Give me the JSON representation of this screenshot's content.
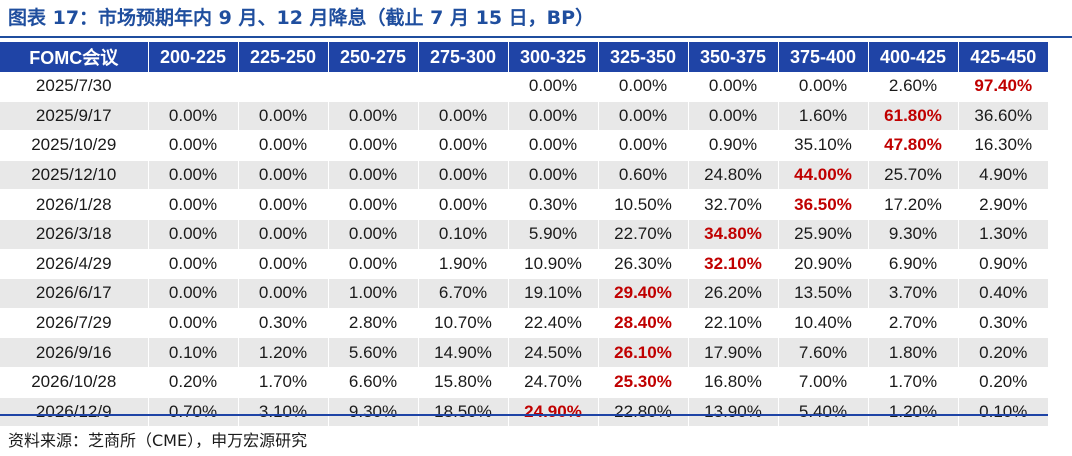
{
  "title": "图表 17：市场预期年内 9 月、12 月降息（截止 7 月 15 日，BP）",
  "source": "资料来源：芝商所（CME），申万宏源研究",
  "colors": {
    "header_bg": "#1f44a6",
    "title": "#1f4e9e",
    "highlight": "#c00000",
    "row_alt": "#e8e8e8"
  },
  "table": {
    "headers": [
      "FOMC会议",
      "200-225",
      "225-250",
      "250-275",
      "275-300",
      "300-325",
      "325-350",
      "350-375",
      "375-400",
      "400-425",
      "425-450"
    ],
    "rows": [
      {
        "cells": [
          "2025/7/30",
          "",
          "",
          "",
          "",
          "0.00%",
          "0.00%",
          "0.00%",
          "0.00%",
          "2.60%",
          "97.40%"
        ],
        "highlight": 10
      },
      {
        "cells": [
          "2025/9/17",
          "0.00%",
          "0.00%",
          "0.00%",
          "0.00%",
          "0.00%",
          "0.00%",
          "0.00%",
          "1.60%",
          "61.80%",
          "36.60%"
        ],
        "highlight": 9
      },
      {
        "cells": [
          "2025/10/29",
          "0.00%",
          "0.00%",
          "0.00%",
          "0.00%",
          "0.00%",
          "0.00%",
          "0.90%",
          "35.10%",
          "47.80%",
          "16.30%"
        ],
        "highlight": 9
      },
      {
        "cells": [
          "2025/12/10",
          "0.00%",
          "0.00%",
          "0.00%",
          "0.00%",
          "0.00%",
          "0.60%",
          "24.80%",
          "44.00%",
          "25.70%",
          "4.90%"
        ],
        "highlight": 8
      },
      {
        "cells": [
          "2026/1/28",
          "0.00%",
          "0.00%",
          "0.00%",
          "0.00%",
          "0.30%",
          "10.50%",
          "32.70%",
          "36.50%",
          "17.20%",
          "2.90%"
        ],
        "highlight": 8
      },
      {
        "cells": [
          "2026/3/18",
          "0.00%",
          "0.00%",
          "0.00%",
          "0.10%",
          "5.90%",
          "22.70%",
          "34.80%",
          "25.90%",
          "9.30%",
          "1.30%"
        ],
        "highlight": 7
      },
      {
        "cells": [
          "2026/4/29",
          "0.00%",
          "0.00%",
          "0.00%",
          "1.90%",
          "10.90%",
          "26.30%",
          "32.10%",
          "20.90%",
          "6.90%",
          "0.90%"
        ],
        "highlight": 7
      },
      {
        "cells": [
          "2026/6/17",
          "0.00%",
          "0.00%",
          "1.00%",
          "6.70%",
          "19.10%",
          "29.40%",
          "26.20%",
          "13.50%",
          "3.70%",
          "0.40%"
        ],
        "highlight": 6
      },
      {
        "cells": [
          "2026/7/29",
          "0.00%",
          "0.30%",
          "2.80%",
          "10.70%",
          "22.40%",
          "28.40%",
          "22.10%",
          "10.40%",
          "2.70%",
          "0.30%"
        ],
        "highlight": 6
      },
      {
        "cells": [
          "2026/9/16",
          "0.10%",
          "1.20%",
          "5.60%",
          "14.90%",
          "24.50%",
          "26.10%",
          "17.90%",
          "7.60%",
          "1.80%",
          "0.20%"
        ],
        "highlight": 6
      },
      {
        "cells": [
          "2026/10/28",
          "0.20%",
          "1.70%",
          "6.60%",
          "15.80%",
          "24.70%",
          "25.30%",
          "16.80%",
          "7.00%",
          "1.70%",
          "0.20%"
        ],
        "highlight": 6
      },
      {
        "cells": [
          "2026/12/9",
          "0.70%",
          "3.10%",
          "9.30%",
          "18.50%",
          "24.90%",
          "22.80%",
          "13.90%",
          "5.40%",
          "1.20%",
          "0.10%"
        ],
        "highlight": 5
      }
    ]
  }
}
